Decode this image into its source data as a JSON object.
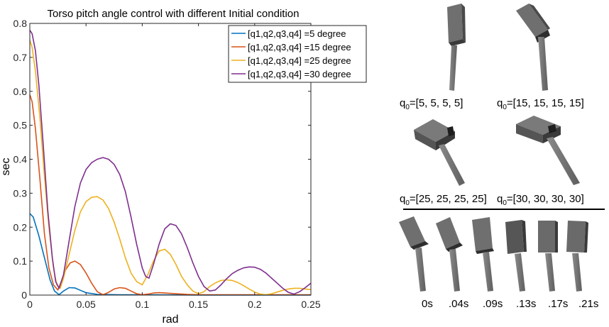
{
  "chart_data": {
    "type": "line",
    "title": "Torso pitch angle control with different Initial condition",
    "xlabel": "rad",
    "ylabel": "sec",
    "xlim": [
      0,
      0.25
    ],
    "ylim": [
      0,
      0.8
    ],
    "xticks": [
      0,
      0.05,
      0.1,
      0.15,
      0.2,
      0.25
    ],
    "xtick_labels": [
      "0",
      "0.05",
      "0.1",
      "0.15",
      "0.2",
      "0.25"
    ],
    "yticks": [
      0,
      0.1,
      0.2,
      0.3,
      0.4,
      0.5,
      0.6,
      0.7,
      0.8
    ],
    "ytick_labels": [
      "0",
      "0.1",
      "0.2",
      "0.3",
      "0.4",
      "0.5",
      "0.6",
      "0.7",
      "0.8"
    ],
    "grid": false,
    "legend_position": "top-right",
    "series": [
      {
        "name": "[q1,q2,q3,q4] =5 degree",
        "color": "#0072bd",
        "x": [
          0,
          0.003,
          0.008,
          0.013,
          0.018,
          0.022,
          0.026,
          0.03,
          0.035,
          0.04,
          0.045,
          0.05,
          0.06,
          0.08,
          0.1,
          0.15,
          0.2,
          0.25
        ],
        "y": [
          0.24,
          0.23,
          0.175,
          0.11,
          0.045,
          0.012,
          0.001,
          0.012,
          0.022,
          0.021,
          0.014,
          0.007,
          0.002,
          0.001,
          0.001,
          0.0,
          0.0,
          0.0
        ]
      },
      {
        "name": "[q1,q2,q3,q4] =15 degree",
        "color": "#d95319",
        "x": [
          0,
          0.002,
          0.005,
          0.009,
          0.013,
          0.017,
          0.021,
          0.025,
          0.028,
          0.032,
          0.036,
          0.04,
          0.045,
          0.05,
          0.055,
          0.06,
          0.065,
          0.07,
          0.075,
          0.08,
          0.085,
          0.09,
          0.095,
          0.1,
          0.105,
          0.11,
          0.115,
          0.12,
          0.125,
          0.13,
          0.14,
          0.15,
          0.18,
          0.2,
          0.25
        ],
        "y": [
          0.59,
          0.57,
          0.49,
          0.34,
          0.18,
          0.08,
          0.03,
          0.015,
          0.04,
          0.075,
          0.095,
          0.1,
          0.09,
          0.065,
          0.035,
          0.01,
          0.001,
          0.008,
          0.018,
          0.022,
          0.02,
          0.012,
          0.004,
          0.001,
          0.003,
          0.006,
          0.007,
          0.006,
          0.005,
          0.004,
          0.002,
          0.001,
          0.001,
          0.001,
          0.001
        ]
      },
      {
        "name": "[q1,q2,q3,q4] =25 degree",
        "color": "#edb120",
        "x": [
          0,
          0.002,
          0.005,
          0.009,
          0.013,
          0.017,
          0.021,
          0.024,
          0.027,
          0.03,
          0.035,
          0.04,
          0.045,
          0.05,
          0.055,
          0.06,
          0.065,
          0.07,
          0.075,
          0.08,
          0.085,
          0.09,
          0.095,
          0.1,
          0.105,
          0.11,
          0.115,
          0.12,
          0.125,
          0.13,
          0.135,
          0.14,
          0.145,
          0.15,
          0.155,
          0.16,
          0.165,
          0.17,
          0.175,
          0.18,
          0.185,
          0.19,
          0.195,
          0.2,
          0.205,
          0.21,
          0.215,
          0.22,
          0.225,
          0.23,
          0.235,
          0.24,
          0.245,
          0.25
        ],
        "y": [
          0.75,
          0.73,
          0.66,
          0.52,
          0.35,
          0.2,
          0.08,
          0.03,
          0.02,
          0.05,
          0.12,
          0.19,
          0.245,
          0.275,
          0.288,
          0.29,
          0.28,
          0.255,
          0.215,
          0.165,
          0.11,
          0.065,
          0.04,
          0.03,
          0.06,
          0.1,
          0.13,
          0.135,
          0.12,
          0.09,
          0.055,
          0.03,
          0.012,
          0.004,
          0.01,
          0.025,
          0.036,
          0.043,
          0.045,
          0.043,
          0.037,
          0.028,
          0.018,
          0.009,
          0.003,
          0.001,
          0.004,
          0.009,
          0.014,
          0.018,
          0.02,
          0.02,
          0.018,
          0.016
        ]
      },
      {
        "name": "[q1,q2,q3,q4] =30 degree",
        "color": "#7e2f8e",
        "x": [
          0,
          0.002,
          0.005,
          0.008,
          0.012,
          0.016,
          0.02,
          0.023,
          0.026,
          0.03,
          0.035,
          0.04,
          0.045,
          0.05,
          0.055,
          0.06,
          0.065,
          0.07,
          0.075,
          0.08,
          0.085,
          0.09,
          0.095,
          0.1,
          0.103,
          0.106,
          0.11,
          0.115,
          0.12,
          0.125,
          0.13,
          0.135,
          0.14,
          0.145,
          0.15,
          0.155,
          0.16,
          0.165,
          0.17,
          0.175,
          0.18,
          0.185,
          0.19,
          0.195,
          0.2,
          0.205,
          0.21,
          0.215,
          0.22,
          0.225,
          0.23,
          0.235,
          0.24,
          0.245,
          0.25
        ],
        "y": [
          0.78,
          0.77,
          0.72,
          0.62,
          0.44,
          0.25,
          0.11,
          0.04,
          0.02,
          0.06,
          0.16,
          0.26,
          0.33,
          0.37,
          0.39,
          0.4,
          0.405,
          0.4,
          0.385,
          0.355,
          0.305,
          0.23,
          0.15,
          0.08,
          0.055,
          0.05,
          0.09,
          0.15,
          0.195,
          0.21,
          0.205,
          0.18,
          0.14,
          0.095,
          0.055,
          0.025,
          0.012,
          0.015,
          0.03,
          0.048,
          0.063,
          0.073,
          0.08,
          0.083,
          0.082,
          0.076,
          0.065,
          0.05,
          0.035,
          0.02,
          0.008,
          0.003,
          0.01,
          0.022,
          0.035
        ]
      }
    ]
  },
  "figure_panel": {
    "labels": [
      {
        "base": "q",
        "sub": "0",
        "rest": "=[5, 5, 5, 5]"
      },
      {
        "base": "q",
        "sub": "0",
        "rest": "=[15, 15, 15, 15]"
      },
      {
        "base": "q",
        "sub": "0",
        "rest": "=[25, 25, 25, 25]"
      },
      {
        "base": "q",
        "sub": "0",
        "rest": "=[30, 30, 30, 30]"
      }
    ],
    "time_labels": [
      "0s",
      ".04s",
      ".09s",
      ".13s",
      ".17s",
      ".21s"
    ]
  }
}
